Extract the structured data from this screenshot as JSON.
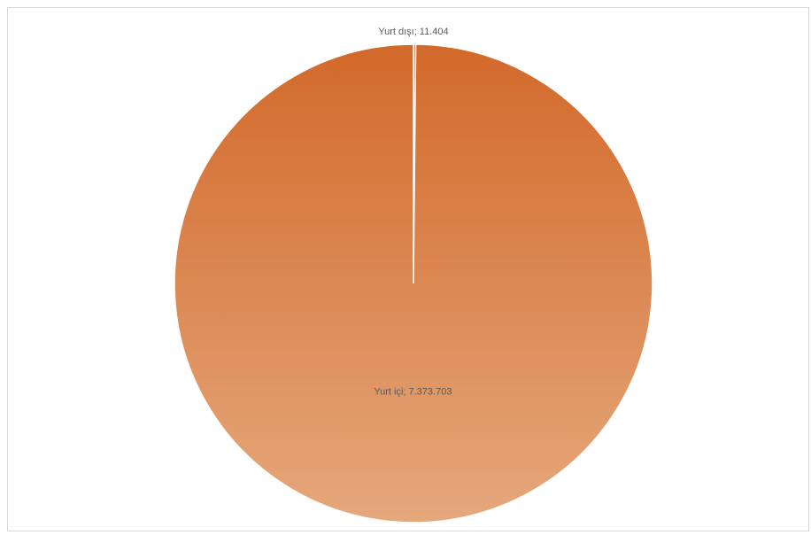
{
  "chart_data": {
    "type": "pie",
    "title": "",
    "slices": [
      {
        "name": "Yurt dışı",
        "value": 11404,
        "label": "Yurt dışı; 11.404"
      },
      {
        "name": "Yurt içi",
        "value": 7373703,
        "label": "Yurt içi; 7.373.703"
      }
    ],
    "colors": {
      "gradient_top": "#D2692A",
      "gradient_bottom": "#E5A87C",
      "slice_border": "#ffffff"
    }
  }
}
